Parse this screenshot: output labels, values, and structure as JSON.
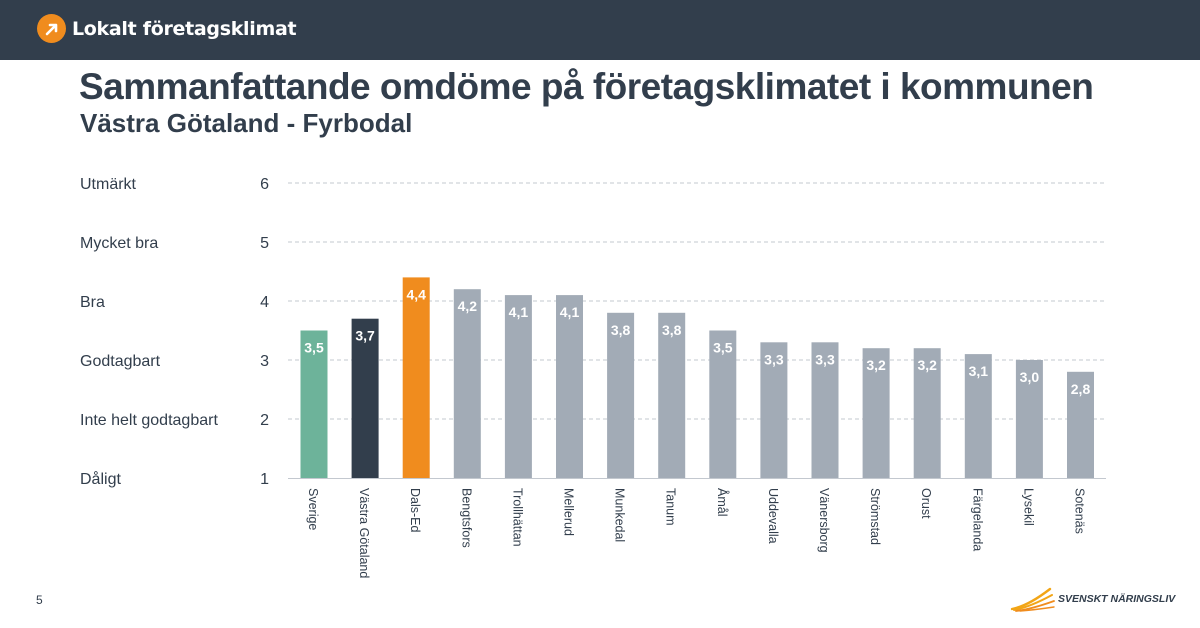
{
  "header": {
    "brand_name": "Lokalt företagsklimat",
    "brand_icon": "arrow-up-right-icon",
    "background_color": "#323e4c",
    "accent_color": "#f08c1e"
  },
  "title": "Sammanfattande omdöme på företagsklimatet i kommunen",
  "subtitle": "Västra Götaland - Fyrbodal",
  "chart_data": {
    "type": "bar",
    "categories": [
      "Sverige",
      "Västra Götaland",
      "Dals-Ed",
      "Bengtsfors",
      "Trollhättan",
      "Mellerud",
      "Munkedal",
      "Tanum",
      "Åmål",
      "Uddevalla",
      "Vänersborg",
      "Strömstad",
      "Orust",
      "Färgelanda",
      "Lysekil",
      "Sotenäs"
    ],
    "values": [
      3.5,
      3.7,
      4.4,
      4.2,
      4.1,
      4.1,
      3.8,
      3.8,
      3.5,
      3.3,
      3.3,
      3.2,
      3.2,
      3.1,
      3.0,
      2.8
    ],
    "data_labels": [
      "3,5",
      "3,7",
      "4,4",
      "4,2",
      "4,1",
      "4,1",
      "3,8",
      "3,8",
      "3,5",
      "3,3",
      "3,3",
      "3,2",
      "3,2",
      "3,1",
      "3,0",
      "2,8"
    ],
    "bar_colors": [
      "#6db39a",
      "#323e4c",
      "#f08c1e",
      "#a2abb6",
      "#a2abb6",
      "#a2abb6",
      "#a2abb6",
      "#a2abb6",
      "#a2abb6",
      "#a2abb6",
      "#a2abb6",
      "#a2abb6",
      "#a2abb6",
      "#a2abb6",
      "#a2abb6",
      "#a2abb6"
    ],
    "ylim": [
      1,
      6
    ],
    "y_ticks": [
      "1",
      "2",
      "3",
      "4",
      "5",
      "6"
    ],
    "y_category_labels": [
      "Dåligt",
      "Inte helt godtagbart",
      "Godtagbart",
      "Bra",
      "Mycket bra",
      "Utmärkt"
    ],
    "grid": "dashed horizontal",
    "xlabel": "",
    "ylabel": ""
  },
  "footer": {
    "page_number": "5",
    "logo_text": "SVENSKT NÄRINGSLIV",
    "logo_icon": "sunburst-wing-icon",
    "logo_color": "#f2a516"
  }
}
